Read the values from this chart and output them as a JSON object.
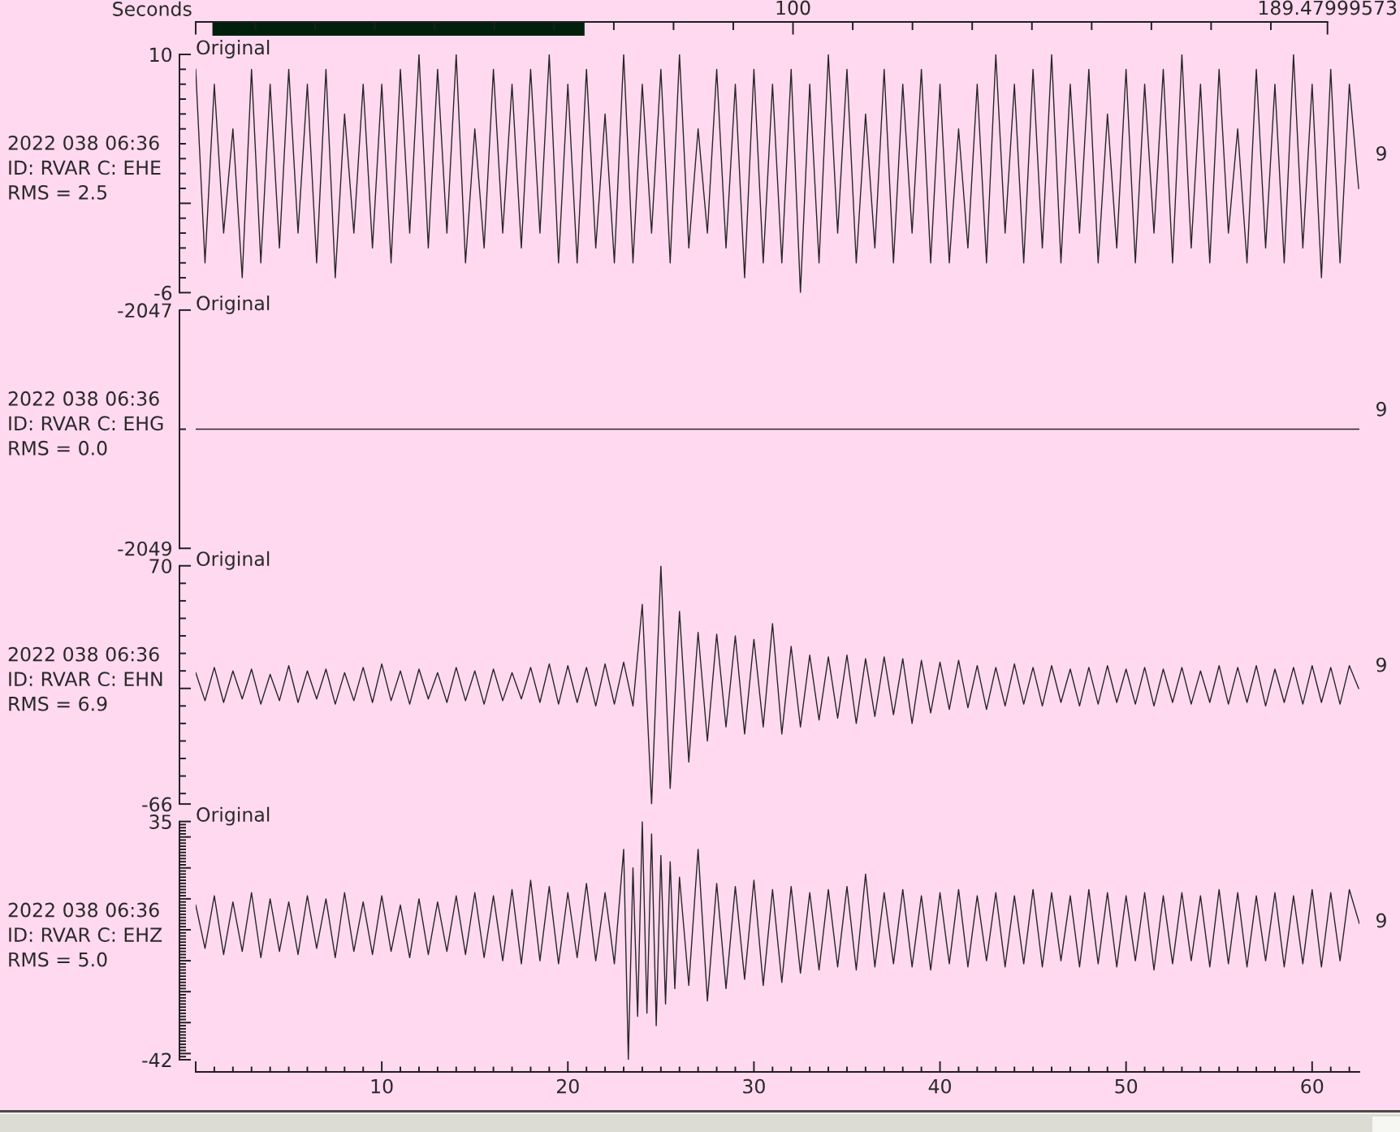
{
  "chart_data": [
    {
      "type": "bar",
      "orientation": "horizontal",
      "categories": [
        null
      ],
      "base": [
        2.8
      ],
      "values": [
        62.3
      ],
      "color": "#00200c",
      "xlabel": "Seconds",
      "xlim": [
        0,
        189.47999573
      ],
      "tick_labels": "x",
      "xticks": [
        {
          "value": 0,
          "label": null
        },
        {
          "value": 10,
          "label": null
        },
        {
          "value": 20,
          "label": null
        },
        {
          "value": 30,
          "label": null
        },
        {
          "value": 40,
          "label": null
        },
        {
          "value": 50,
          "label": null
        },
        {
          "value": 60,
          "label": null
        },
        {
          "value": 70,
          "label": null
        },
        {
          "value": 80,
          "label": null
        },
        {
          "value": 90,
          "label": null
        },
        100,
        {
          "value": 110,
          "label": null
        },
        {
          "value": 120,
          "label": null
        },
        {
          "value": 130,
          "label": null
        },
        {
          "value": 140,
          "label": null
        },
        {
          "value": 150,
          "label": null
        },
        {
          "value": 160,
          "label": null
        },
        {
          "value": 170,
          "label": null
        },
        {
          "value": 180,
          "label": null
        },
        189.47999573
      ]
    },
    {
      "type": "line",
      "title": "Original",
      "annotations": [
        "2022 038 06:36",
        "ID: RVAR C: EHE",
        "RMS = 2.5",
        "9"
      ],
      "ylim": [
        -6,
        10
      ],
      "tick_labels": "y",
      "yticks": [
        -6,
        {
          "value": -5,
          "label": null
        },
        {
          "value": -4,
          "label": null
        },
        {
          "value": -3,
          "label": null
        },
        {
          "value": -2,
          "label": null
        },
        {
          "value": -1,
          "label": null
        },
        {
          "value": 0,
          "label": null
        },
        {
          "value": 1,
          "label": null
        },
        {
          "value": 2,
          "label": null
        },
        {
          "value": 3,
          "label": null
        },
        {
          "value": 4,
          "label": null
        },
        {
          "value": 5,
          "label": null
        },
        {
          "value": 6,
          "label": null
        },
        {
          "value": 7,
          "label": null
        },
        {
          "value": 8,
          "label": null
        },
        {
          "value": 9,
          "label": null
        },
        10
      ],
      "x": [
        0,
        0.5,
        1,
        1.5,
        2,
        2.5,
        3,
        3.5,
        4,
        4.5,
        5,
        5.5,
        6,
        6.5,
        7,
        7.5,
        8,
        8.5,
        9,
        9.5,
        10,
        10.5,
        11,
        11.5,
        12,
        12.5,
        13,
        13.5,
        14,
        14.5,
        15,
        15.5,
        16,
        16.5,
        17,
        17.5,
        18,
        18.5,
        19,
        19.5,
        20,
        20.5,
        21,
        21.5,
        22,
        22.5,
        23,
        23.5,
        24,
        24.5,
        25,
        25.5,
        26,
        26.5,
        27,
        27.5,
        28,
        28.5,
        29,
        29.5,
        30,
        30.5,
        31,
        31.5,
        32,
        32.5,
        33,
        33.5,
        34,
        34.5,
        35,
        35.5,
        36,
        36.5,
        37,
        37.5,
        38,
        38.5,
        39,
        39.5,
        40,
        40.5,
        41,
        41.5,
        42,
        42.5,
        43,
        43.5,
        44,
        44.5,
        45,
        45.5,
        46,
        46.5,
        47,
        47.5,
        48,
        48.5,
        49,
        49.5,
        50,
        50.5,
        51,
        51.5,
        52,
        52.5,
        53,
        53.5,
        54,
        54.5,
        55,
        55.5,
        56,
        56.5,
        57,
        57.5,
        58,
        58.5,
        59,
        59.5,
        60,
        60.5,
        61,
        61.5,
        62,
        62.5
      ],
      "series": [
        {
          "color": "#262626",
          "values": [
            9,
            -4,
            8,
            -2,
            5,
            -5,
            9,
            -4,
            8,
            -3,
            9,
            -2,
            8,
            -4,
            9,
            -5,
            6,
            -2,
            8,
            -3,
            8,
            -4,
            9,
            -2,
            10,
            -3,
            9,
            -2,
            10,
            -4,
            5,
            -3,
            9,
            -2,
            8,
            -3,
            9,
            -2,
            10,
            -4,
            8,
            -4,
            9,
            -3,
            6,
            -4,
            10,
            -4,
            8,
            -2,
            9,
            -4,
            10,
            -3,
            5,
            -2,
            9,
            -3,
            8,
            -5,
            9,
            -4,
            8,
            -4,
            9,
            -6,
            8,
            -4,
            10,
            -2,
            9,
            -4,
            6,
            -3,
            9,
            -4,
            8,
            -2,
            9,
            -4,
            8,
            -4,
            5,
            -3,
            8,
            -4,
            10,
            -2,
            8,
            -4,
            9,
            -3,
            10,
            -4,
            8,
            -2,
            9,
            -4,
            6,
            -3,
            9,
            -4,
            8,
            -2,
            9,
            -4,
            10,
            -3,
            8,
            -4,
            9,
            -2,
            5,
            -4,
            9,
            -3,
            8,
            -4,
            10,
            -3,
            8,
            -5,
            9,
            -4,
            8,
            1
          ]
        }
      ]
    },
    {
      "type": "line",
      "title": "Original",
      "annotations": [
        "2022 038 06:36",
        "ID: RVAR C: EHG",
        "RMS = 0.0",
        "9"
      ],
      "xlim": [
        0,
        62.54
      ],
      "ylim": [
        -2049,
        -2047
      ],
      "tick_labels": "y",
      "yticks": [
        -2049,
        {
          "value": -2048,
          "label": null
        },
        -2047
      ],
      "x": [
        0,
        62.54
      ],
      "series": [
        {
          "color": "#262626",
          "values": [
            -2048,
            -2048
          ]
        }
      ]
    },
    {
      "type": "line",
      "title": "Original",
      "annotations": [
        "2022 038 06:36",
        "ID: RVAR C: EHN",
        "RMS = 6.9",
        "9"
      ],
      "ylim": [
        -66,
        70
      ],
      "tick_labels": "y",
      "yticks": [
        -66,
        {
          "value": -60,
          "label": null
        },
        {
          "value": -50,
          "label": null
        },
        {
          "value": -40,
          "label": null
        },
        {
          "value": -30,
          "label": null
        },
        {
          "value": -20,
          "label": null
        },
        {
          "value": -10,
          "label": null
        },
        {
          "value": 0,
          "label": null
        },
        {
          "value": 10,
          "label": null
        },
        {
          "value": 20,
          "label": null
        },
        {
          "value": 30,
          "label": null
        },
        {
          "value": 40,
          "label": null
        },
        {
          "value": 50,
          "label": null
        },
        {
          "value": 60,
          "label": null
        },
        70
      ],
      "x": [
        0,
        0.5,
        1,
        1.5,
        2,
        2.5,
        3,
        3.5,
        4,
        4.5,
        5,
        5.5,
        6,
        6.5,
        7,
        7.5,
        8,
        8.5,
        9,
        9.5,
        10,
        10.5,
        11,
        11.5,
        12,
        12.5,
        13,
        13.5,
        14,
        14.5,
        15,
        15.5,
        16,
        16.5,
        17,
        17.5,
        18,
        18.5,
        19,
        19.5,
        20,
        20.5,
        21,
        21.5,
        22,
        22.5,
        23,
        23.5,
        24,
        24.5,
        25,
        25.5,
        26,
        26.5,
        27,
        27.5,
        28,
        28.5,
        29,
        29.5,
        30,
        30.5,
        31,
        31.5,
        32,
        32.5,
        33,
        33.5,
        34,
        34.5,
        35,
        35.5,
        36,
        36.5,
        37,
        37.5,
        38,
        38.5,
        39,
        39.5,
        40,
        40.5,
        41,
        41.5,
        42,
        42.5,
        43,
        43.5,
        44,
        44.5,
        45,
        45.5,
        46,
        46.5,
        47,
        47.5,
        48,
        48.5,
        49,
        49.5,
        50,
        50.5,
        51,
        51.5,
        52,
        52.5,
        53,
        53.5,
        54,
        54.5,
        55,
        55.5,
        56,
        56.5,
        57,
        57.5,
        58,
        58.5,
        59,
        59.5,
        60,
        60.5,
        61,
        61.5,
        62,
        62.5
      ],
      "series": [
        {
          "color": "#262626",
          "values": [
            9,
            -7,
            12,
            -8,
            10,
            -6,
            11,
            -9,
            8,
            -7,
            13,
            -8,
            10,
            -6,
            11,
            -9,
            9,
            -7,
            12,
            -8,
            14,
            -7,
            10,
            -9,
            11,
            -6,
            9,
            -8,
            12,
            -7,
            10,
            -9,
            11,
            -7,
            9,
            -6,
            12,
            -8,
            14,
            -9,
            13,
            -8,
            12,
            -10,
            14,
            -9,
            15,
            -10,
            48,
            -66,
            70,
            -57,
            44,
            -42,
            32,
            -30,
            31,
            -22,
            30,
            -26,
            28,
            -22,
            37,
            -26,
            24,
            -22,
            19,
            -18,
            18,
            -17,
            19,
            -20,
            17,
            -16,
            18,
            -15,
            17,
            -20,
            16,
            -14,
            15,
            -12,
            16,
            -11,
            13,
            -12,
            12,
            -10,
            14,
            -9,
            12,
            -10,
            13,
            -8,
            11,
            -10,
            12,
            -9,
            13,
            -8,
            11,
            -9,
            12,
            -10,
            11,
            -8,
            12,
            -9,
            10,
            -8,
            13,
            -9,
            12,
            -8,
            13,
            -10,
            11,
            -8,
            12,
            -9,
            13,
            -8,
            12,
            -9,
            13,
            0
          ]
        }
      ]
    },
    {
      "type": "line",
      "title": "Original",
      "annotations": [
        "2022 038 06:36",
        "ID: RVAR C: EHZ",
        "RMS = 5.0",
        "9"
      ],
      "xlim": [
        0,
        62.54
      ],
      "ylim": [
        -42,
        35
      ],
      "yticks": [
        -42,
        {
          "value": -41,
          "label": null
        },
        {
          "value": -40,
          "label": null
        },
        {
          "value": -39,
          "label": null
        },
        {
          "value": -38,
          "label": null
        },
        {
          "value": -37,
          "label": null
        },
        {
          "value": -36,
          "label": null
        },
        {
          "value": -35,
          "label": null
        },
        {
          "value": -34,
          "label": null
        },
        {
          "value": -33,
          "label": null
        },
        {
          "value": -32,
          "label": null
        },
        {
          "value": -31,
          "label": null
        },
        {
          "value": -30,
          "label": null
        },
        {
          "value": -29,
          "label": null
        },
        {
          "value": -28,
          "label": null
        },
        {
          "value": -27,
          "label": null
        },
        {
          "value": -26,
          "label": null
        },
        {
          "value": -25,
          "label": null
        },
        {
          "value": -24,
          "label": null
        },
        {
          "value": -23,
          "label": null
        },
        {
          "value": -22,
          "label": null
        },
        {
          "value": -21,
          "label": null
        },
        {
          "value": -20,
          "label": null
        },
        {
          "value": -19,
          "label": null
        },
        {
          "value": -18,
          "label": null
        },
        {
          "value": -17,
          "label": null
        },
        {
          "value": -16,
          "label": null
        },
        {
          "value": -15,
          "label": null
        },
        {
          "value": -14,
          "label": null
        },
        {
          "value": -13,
          "label": null
        },
        {
          "value": -12,
          "label": null
        },
        {
          "value": -11,
          "label": null
        },
        {
          "value": -10,
          "label": null
        },
        {
          "value": -9,
          "label": null
        },
        {
          "value": -8,
          "label": null
        },
        {
          "value": -7,
          "label": null
        },
        {
          "value": -6,
          "label": null
        },
        {
          "value": -5,
          "label": null
        },
        {
          "value": -4,
          "label": null
        },
        {
          "value": -3,
          "label": null
        },
        {
          "value": -2,
          "label": null
        },
        {
          "value": -1,
          "label": null
        },
        {
          "value": 0,
          "label": null
        },
        {
          "value": 1,
          "label": null
        },
        {
          "value": 2,
          "label": null
        },
        {
          "value": 3,
          "label": null
        },
        {
          "value": 4,
          "label": null
        },
        {
          "value": 5,
          "label": null
        },
        {
          "value": 6,
          "label": null
        },
        {
          "value": 7,
          "label": null
        },
        {
          "value": 8,
          "label": null
        },
        {
          "value": 9,
          "label": null
        },
        {
          "value": 10,
          "label": null
        },
        {
          "value": 11,
          "label": null
        },
        {
          "value": 12,
          "label": null
        },
        {
          "value": 13,
          "label": null
        },
        {
          "value": 14,
          "label": null
        },
        {
          "value": 15,
          "label": null
        },
        {
          "value": 16,
          "label": null
        },
        {
          "value": 17,
          "label": null
        },
        {
          "value": 18,
          "label": null
        },
        {
          "value": 19,
          "label": null
        },
        {
          "value": 20,
          "label": null
        },
        {
          "value": 21,
          "label": null
        },
        {
          "value": 22,
          "label": null
        },
        {
          "value": 23,
          "label": null
        },
        {
          "value": 24,
          "label": null
        },
        {
          "value": 25,
          "label": null
        },
        {
          "value": 26,
          "label": null
        },
        {
          "value": 27,
          "label": null
        },
        {
          "value": 28,
          "label": null
        },
        {
          "value": 29,
          "label": null
        },
        {
          "value": 30,
          "label": null
        },
        {
          "value": 31,
          "label": null
        },
        {
          "value": 32,
          "label": null
        },
        {
          "value": 33,
          "label": null
        },
        {
          "value": 34,
          "label": null
        },
        35
      ],
      "xticks": [
        {
          "value": 0,
          "label": null
        },
        {
          "value": 1,
          "label": null
        },
        {
          "value": 2,
          "label": null
        },
        {
          "value": 3,
          "label": null
        },
        {
          "value": 4,
          "label": null
        },
        {
          "value": 5,
          "label": null
        },
        {
          "value": 6,
          "label": null
        },
        {
          "value": 7,
          "label": null
        },
        {
          "value": 8,
          "label": null
        },
        {
          "value": 9,
          "label": null
        },
        10,
        {
          "value": 11,
          "label": null
        },
        {
          "value": 12,
          "label": null
        },
        {
          "value": 13,
          "label": null
        },
        {
          "value": 14,
          "label": null
        },
        {
          "value": 15,
          "label": null
        },
        {
          "value": 16,
          "label": null
        },
        {
          "value": 17,
          "label": null
        },
        {
          "value": 18,
          "label": null
        },
        {
          "value": 19,
          "label": null
        },
        20,
        {
          "value": 21,
          "label": null
        },
        {
          "value": 22,
          "label": null
        },
        {
          "value": 23,
          "label": null
        },
        {
          "value": 24,
          "label": null
        },
        {
          "value": 25,
          "label": null
        },
        {
          "value": 26,
          "label": null
        },
        {
          "value": 27,
          "label": null
        },
        {
          "value": 28,
          "label": null
        },
        {
          "value": 29,
          "label": null
        },
        30,
        {
          "value": 31,
          "label": null
        },
        {
          "value": 32,
          "label": null
        },
        {
          "value": 33,
          "label": null
        },
        {
          "value": 34,
          "label": null
        },
        {
          "value": 35,
          "label": null
        },
        {
          "value": 36,
          "label": null
        },
        {
          "value": 37,
          "label": null
        },
        {
          "value": 38,
          "label": null
        },
        {
          "value": 39,
          "label": null
        },
        40,
        {
          "value": 41,
          "label": null
        },
        {
          "value": 42,
          "label": null
        },
        {
          "value": 43,
          "label": null
        },
        {
          "value": 44,
          "label": null
        },
        {
          "value": 45,
          "label": null
        },
        {
          "value": 46,
          "label": null
        },
        {
          "value": 47,
          "label": null
        },
        {
          "value": 48,
          "label": null
        },
        {
          "value": 49,
          "label": null
        },
        50,
        {
          "value": 51,
          "label": null
        },
        {
          "value": 52,
          "label": null
        },
        {
          "value": 53,
          "label": null
        },
        {
          "value": 54,
          "label": null
        },
        {
          "value": 55,
          "label": null
        },
        {
          "value": 56,
          "label": null
        },
        {
          "value": 57,
          "label": null
        },
        {
          "value": 58,
          "label": null
        },
        {
          "value": 59,
          "label": null
        },
        60,
        {
          "value": 61,
          "label": null
        },
        {
          "value": 62,
          "label": null
        }
      ],
      "x": [
        0,
        0.5,
        1,
        1.5,
        2,
        2.5,
        3,
        3.5,
        4,
        4.5,
        5,
        5.5,
        6,
        6.5,
        7,
        7.5,
        8,
        8.5,
        9,
        9.5,
        10,
        10.5,
        11,
        11.5,
        12,
        12.5,
        13,
        13.5,
        14,
        14.5,
        15,
        15.5,
        16,
        16.5,
        17,
        17.5,
        18,
        18.5,
        19,
        19.5,
        20,
        20.5,
        21,
        21.5,
        22,
        22.5,
        23,
        23.25,
        23.5,
        23.75,
        24,
        24.25,
        24.5,
        24.75,
        25,
        25.25,
        25.5,
        25.75,
        26,
        26.5,
        27,
        27.5,
        28,
        28.5,
        29,
        29.5,
        30,
        30.5,
        31,
        31.5,
        32,
        32.5,
        33,
        33.5,
        34,
        34.5,
        35,
        35.5,
        36,
        36.5,
        37,
        37.5,
        38,
        38.5,
        39,
        39.5,
        40,
        40.5,
        41,
        41.5,
        42,
        42.5,
        43,
        43.5,
        44,
        44.5,
        45,
        45.5,
        46,
        46.5,
        47,
        47.5,
        48,
        48.5,
        49,
        49.5,
        50,
        50.5,
        51,
        51.5,
        52,
        52.5,
        53,
        53.5,
        54,
        54.5,
        55,
        55.5,
        56,
        56.5,
        57,
        57.5,
        58,
        58.5,
        59,
        59.5,
        60,
        60.5,
        61,
        61.5,
        62,
        62.54
      ],
      "series": [
        {
          "color": "#262626",
          "values": [
            8,
            -6,
            11,
            -8,
            9,
            -7,
            12,
            -9,
            10,
            -7,
            9,
            -8,
            11,
            -6,
            10,
            -9,
            12,
            -7,
            9,
            -8,
            11,
            -7,
            8,
            -9,
            10,
            -8,
            9,
            -7,
            11,
            -8,
            12,
            -9,
            11,
            -10,
            13,
            -11,
            16,
            -10,
            14,
            -11,
            12,
            -9,
            15,
            -10,
            12,
            -11,
            26,
            -42,
            20,
            -28,
            35,
            -27,
            31,
            -31,
            24,
            -24,
            22,
            -19,
            17,
            -18,
            26,
            -23,
            15,
            -19,
            14,
            -16,
            16,
            -18,
            13,
            -17,
            14,
            -14,
            12,
            -13,
            13,
            -12,
            14,
            -13,
            18,
            -12,
            12,
            -11,
            13,
            -12,
            11,
            -13,
            12,
            -11,
            13,
            -12,
            11,
            -10,
            12,
            -12,
            11,
            -11,
            13,
            -12,
            12,
            -10,
            11,
            -12,
            13,
            -11,
            12,
            -12,
            11,
            -10,
            12,
            -13,
            11,
            -11,
            12,
            -10,
            11,
            -12,
            13,
            -11,
            12,
            -12,
            11,
            -10,
            12,
            -12,
            11,
            -11,
            13,
            -12,
            12,
            -10,
            13,
            2
          ]
        }
      ]
    }
  ]
}
